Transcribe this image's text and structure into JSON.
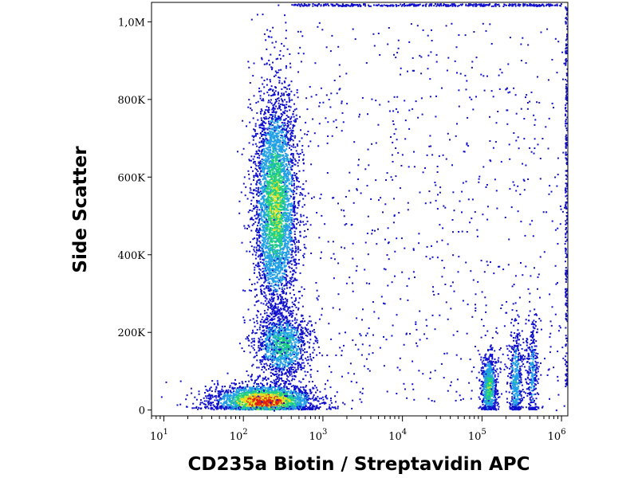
{
  "chart_data": {
    "type": "scatter",
    "style": "flow cytometry density dot plot (pseudocolor: blue low → green → yellow → red high)",
    "xlabel": "CD235a Biotin / Streptavidin APC",
    "ylabel": "Side Scatter",
    "x_scale": "log",
    "xlim": [
      7,
      1200000
    ],
    "ylim": [
      -15000,
      1050000
    ],
    "x_ticks": [
      {
        "base": "10",
        "exp": "1",
        "value": 10
      },
      {
        "base": "10",
        "exp": "2",
        "value": 100
      },
      {
        "base": "10",
        "exp": "3",
        "value": 1000
      },
      {
        "base": "10",
        "exp": "4",
        "value": 10000
      },
      {
        "base": "10",
        "exp": "5",
        "value": 100000
      },
      {
        "base": "10",
        "exp": "6",
        "value": 1000000
      }
    ],
    "y_ticks": [
      {
        "label": "0",
        "value": 0
      },
      {
        "label": "200K",
        "value": 200000
      },
      {
        "label": "400K",
        "value": 400000
      },
      {
        "label": "600K",
        "value": 600000
      },
      {
        "label": "800K",
        "value": 800000
      },
      {
        "label": "1,0M",
        "value": 1000000
      }
    ],
    "grid": false,
    "colors": {
      "low": "#1010cc",
      "mid_low": "#22a0e6",
      "mid": "#20d080",
      "mid_high": "#e8e020",
      "high": "#e02010"
    },
    "populations": [
      {
        "name": "negative-low-ssc",
        "x_center": 180,
        "y_center": 25000,
        "peak_density": 1.0
      },
      {
        "name": "negative-mid-ssc",
        "x_center": 300,
        "y_center": 170000,
        "peak_density": 0.55
      },
      {
        "name": "negative-high-ssc",
        "x_center": 250,
        "y_center": 530000,
        "peak_density": 0.65
      },
      {
        "name": "positive-1",
        "x_center": 120000,
        "y_center": 60000,
        "peak_density": 0.6
      },
      {
        "name": "positive-2",
        "x_center": 260000,
        "y_center": 80000,
        "peak_density": 0.4
      },
      {
        "name": "positive-3",
        "x_center": 420000,
        "y_center": 100000,
        "peak_density": 0.3
      }
    ]
  }
}
